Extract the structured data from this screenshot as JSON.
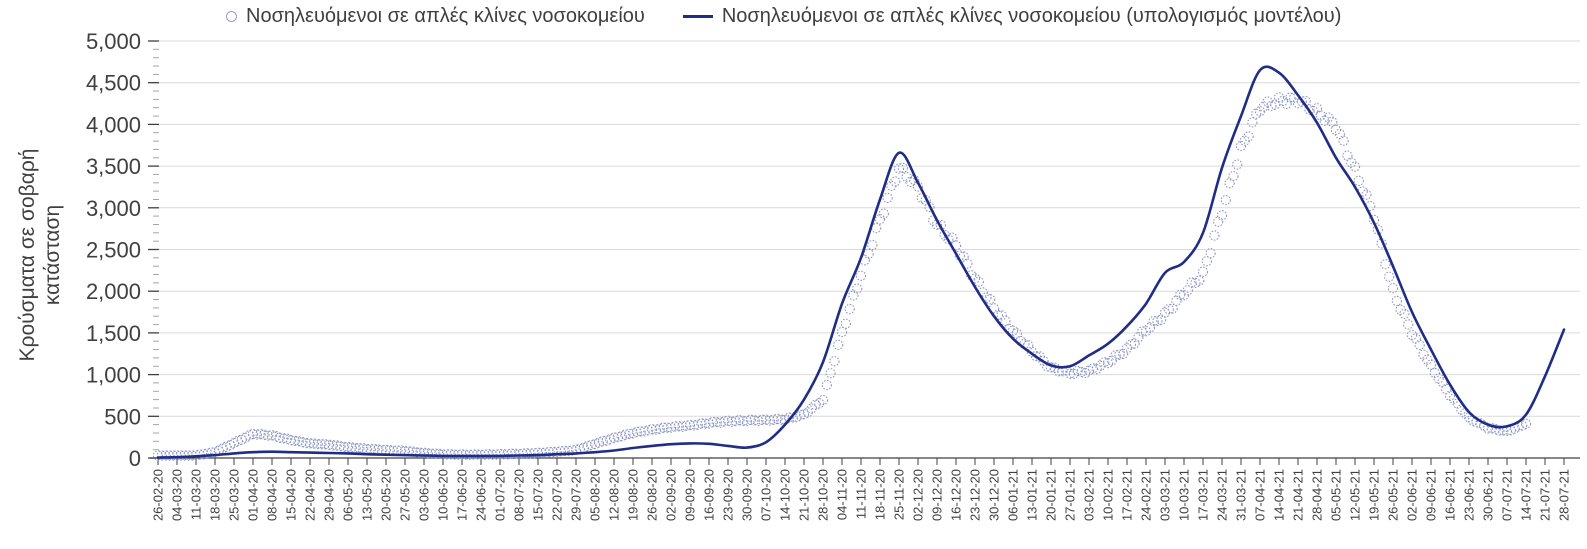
{
  "colors": {
    "model_line": "#1f2d86",
    "observed_marker": "#8a94c2",
    "gridline": "#dadada",
    "axis": "#404040",
    "minor_tick": "#a6a6a6",
    "text": "#404040",
    "background": "#ffffff"
  },
  "chart_data": {
    "type": "line",
    "title": "",
    "ylabel": "Κρούσματα σε σοβαρή κατάσταση",
    "ylabel_lines": [
      "Κρούσματα σε σοβαρή",
      "κατάσταση"
    ],
    "xlabel": "",
    "ylim": [
      0,
      5000
    ],
    "ytick_step": 500,
    "ytick_minor_step": 100,
    "ytick_labels": [
      "0",
      "500",
      "1,000",
      "1,500",
      "2,000",
      "2,500",
      "3,000",
      "3,500",
      "4,000",
      "4,500",
      "5,000"
    ],
    "grid": "horizontal",
    "legend_position": "top",
    "categories": [
      "26-02-20",
      "04-03-20",
      "11-03-20",
      "18-03-20",
      "25-03-20",
      "01-04-20",
      "08-04-20",
      "15-04-20",
      "22-04-20",
      "29-04-20",
      "06-05-20",
      "13-05-20",
      "20-05-20",
      "27-05-20",
      "03-06-20",
      "10-06-20",
      "17-06-20",
      "24-06-20",
      "01-07-20",
      "08-07-20",
      "15-07-20",
      "22-07-20",
      "29-07-20",
      "05-08-20",
      "12-08-20",
      "19-08-20",
      "26-08-20",
      "02-09-20",
      "09-09-20",
      "16-09-20",
      "23-09-20",
      "30-09-20",
      "07-10-20",
      "14-10-20",
      "21-10-20",
      "28-10-20",
      "04-11-20",
      "11-11-20",
      "18-11-20",
      "25-11-20",
      "02-12-20",
      "09-12-20",
      "16-12-20",
      "23-12-20",
      "30-12-20",
      "06-01-21",
      "13-01-21",
      "20-01-21",
      "27-01-21",
      "03-02-21",
      "10-02-21",
      "17-02-21",
      "24-02-21",
      "03-03-21",
      "10-03-21",
      "17-03-21",
      "24-03-21",
      "31-03-21",
      "07-04-21",
      "14-04-21",
      "21-04-21",
      "28-04-21",
      "05-05-21",
      "12-05-21",
      "19-05-21",
      "26-05-21",
      "02-06-21",
      "09-06-21",
      "16-06-21",
      "23-06-21",
      "30-06-21",
      "07-07-21",
      "14-07-21",
      "21-07-21",
      "28-07-21"
    ],
    "series": [
      {
        "name": "Νοσηλευόμενοι σε απλές κλίνες νοσοκομείου",
        "style": "circle-markers",
        "color": "#8a94c2",
        "values": [
          10,
          15,
          30,
          70,
          180,
          290,
          270,
          215,
          175,
          160,
          130,
          110,
          95,
          85,
          60,
          45,
          40,
          40,
          45,
          50,
          60,
          75,
          95,
          170,
          240,
          300,
          340,
          370,
          390,
          420,
          440,
          450,
          455,
          465,
          520,
          700,
          1500,
          2200,
          2850,
          3480,
          3250,
          2800,
          2550,
          2150,
          1800,
          1520,
          1280,
          1080,
          1020,
          1040,
          1150,
          1300,
          1540,
          1720,
          1980,
          2200,
          2950,
          3700,
          4200,
          4280,
          4300,
          4150,
          3980,
          3450,
          2900,
          2000,
          1500,
          1100,
          760,
          480,
          360,
          320,
          410,
          null,
          null
        ]
      },
      {
        "name": "Νοσηλευόμενοι σε απλές κλίνες νοσοκομείου (υπολογισμός μοντέλου)",
        "style": "solid-line",
        "color": "#1f2d86",
        "values": [
          5,
          10,
          20,
          35,
          55,
          70,
          75,
          70,
          65,
          60,
          55,
          45,
          40,
          35,
          30,
          25,
          25,
          25,
          25,
          30,
          35,
          45,
          55,
          70,
          90,
          120,
          145,
          165,
          175,
          170,
          145,
          125,
          190,
          400,
          700,
          1150,
          1850,
          2400,
          3100,
          3660,
          3300,
          2850,
          2450,
          2050,
          1700,
          1430,
          1250,
          1110,
          1100,
          1230,
          1370,
          1580,
          1850,
          2220,
          2350,
          2700,
          3480,
          4100,
          4650,
          4620,
          4350,
          4020,
          3600,
          3250,
          2820,
          2300,
          1750,
          1300,
          880,
          550,
          400,
          380,
          520,
          980,
          1540
        ]
      }
    ]
  }
}
